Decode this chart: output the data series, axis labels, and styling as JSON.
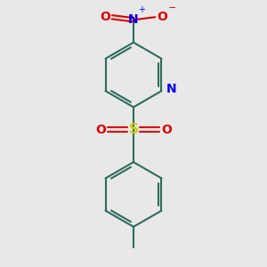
{
  "bg_color": "#e8e8e8",
  "bond_color": "#2d6b5e",
  "N_color": "#0000ee",
  "O_color": "#dd0000",
  "S_color": "#cccc00",
  "bond_width": 1.5,
  "fig_size": [
    3.0,
    3.0
  ],
  "dpi": 100,
  "xlim": [
    -1.8,
    1.8
  ],
  "ylim": [
    -2.6,
    2.2
  ]
}
